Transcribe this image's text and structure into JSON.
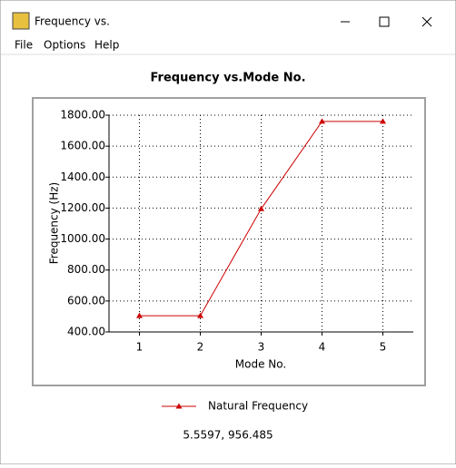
{
  "window": {
    "title": "Frequency vs.",
    "menu": [
      "File",
      "Options",
      "Help"
    ],
    "status": "5.5597, 956.485"
  },
  "chart_data": {
    "type": "line",
    "title": "Frequency vs.Mode No.",
    "x_label": "Mode No.",
    "y_label": "Frequency (Hz)",
    "x": [
      1,
      2,
      3,
      4,
      5
    ],
    "series": [
      {
        "name": "Natural Frequency",
        "color": "#cc0000",
        "marker": "triangle",
        "values": [
          505,
          505,
          1195,
          1760,
          1760
        ]
      }
    ],
    "xlim": [
      0.5,
      5.5
    ],
    "xticks": [
      1,
      2,
      3,
      4,
      5
    ],
    "ylim": [
      400,
      1800
    ],
    "yticks": [
      {
        "value": 400,
        "label": "400.00"
      },
      {
        "value": 600,
        "label": "600.00"
      },
      {
        "value": 800,
        "label": "800.00"
      },
      {
        "value": 1000,
        "label": "1000.00"
      },
      {
        "value": 1200,
        "label": "1200.00"
      },
      {
        "value": 1400,
        "label": "1400.00"
      },
      {
        "value": 1600,
        "label": "1600.00"
      },
      {
        "value": 1800,
        "label": "1800.00"
      }
    ],
    "grid": true,
    "legend": "bottom"
  }
}
